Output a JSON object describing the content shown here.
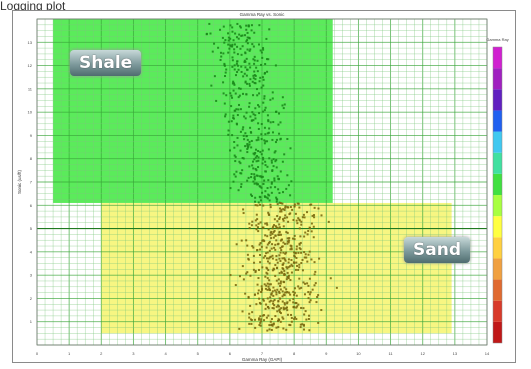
{
  "caption": "Logging plot",
  "chart_data": {
    "type": "scatter",
    "title": "Gamma Ray vs. Sonic",
    "xlabel": "Gamma Ray (GAPI)",
    "ylabel": "Sonic (us/ft)",
    "xlim": [
      0,
      14
    ],
    "ylim": [
      0,
      14
    ],
    "x_ticks": [
      "0",
      "1",
      "2",
      "3",
      "4",
      "5",
      "6",
      "7",
      "8",
      "9",
      "10",
      "11",
      "12",
      "13",
      "14"
    ],
    "y_ticks": [
      "1",
      "2",
      "3",
      "4",
      "5",
      "6",
      "7",
      "8",
      "9",
      "10",
      "11",
      "12",
      "13"
    ],
    "grid": true,
    "regions": [
      {
        "name": "Shale",
        "color": "#3ee83e",
        "x": [
          0.5,
          9.2
        ],
        "y": [
          6.1,
          14
        ]
      },
      {
        "name": "Sand",
        "color": "#f6f46c",
        "x": [
          2,
          12.9
        ],
        "y": [
          0.5,
          6.1
        ]
      }
    ],
    "colorbar": {
      "label": "Gamma Ray",
      "colors": [
        "#c01818",
        "#d83a2a",
        "#e06a30",
        "#f0a040",
        "#ffd040",
        "#ffff40",
        "#a8ff40",
        "#40e040",
        "#40e0a0",
        "#40c8f0",
        "#2060f0",
        "#6020c0",
        "#a020c0",
        "#d020d0"
      ]
    },
    "series": [
      {
        "points": "shale cloud",
        "x_center": 7.2,
        "x_spread": 0.9,
        "y_range": [
          6.1,
          13.8
        ],
        "color": "#1a8a1a",
        "count": 420
      },
      {
        "points": "sand cloud",
        "x_center": 7.6,
        "x_spread": 1.1,
        "y_range": [
          0.6,
          6.1
        ],
        "color": "#7a6a10",
        "count": 520
      }
    ],
    "region_labels": [
      "Shale",
      "Sand"
    ]
  }
}
